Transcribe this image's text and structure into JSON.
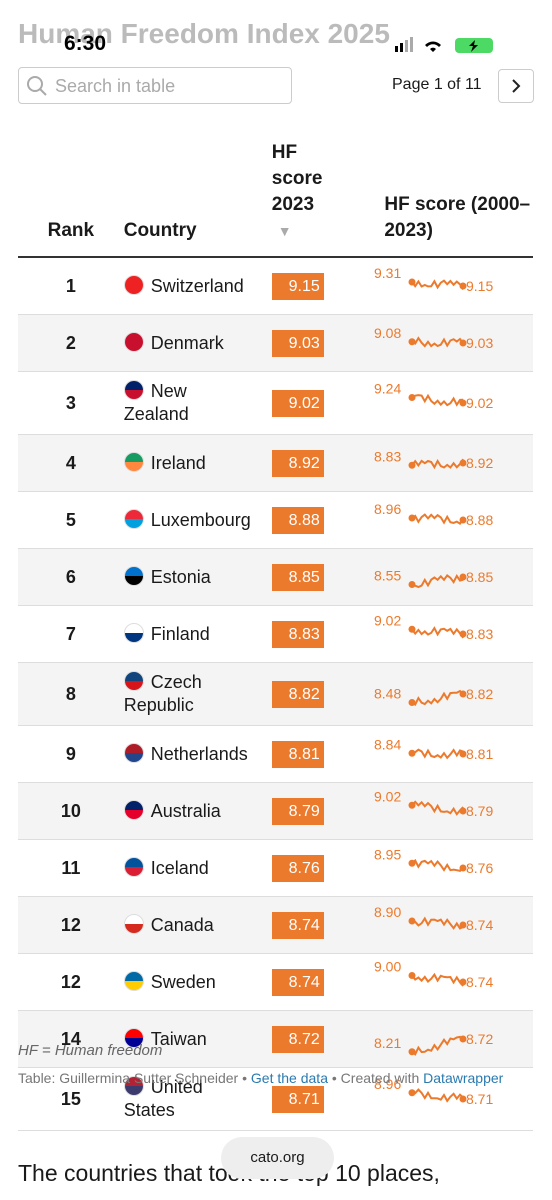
{
  "status": {
    "time": "6:30"
  },
  "header": {
    "title": "Human Freedom Index 2025"
  },
  "search": {
    "placeholder": "Search in table"
  },
  "pager": {
    "label": "Page 1 of 11"
  },
  "table": {
    "columns": [
      "Rank",
      "Country",
      "HF score 2023",
      "HF score (2000–2023)"
    ],
    "rows": [
      {
        "rank": "1",
        "country": "Switzerland",
        "score": "9.15",
        "start": "9.31",
        "end": "9.15"
      },
      {
        "rank": "2",
        "country": "Denmark",
        "score": "9.03",
        "start": "9.08",
        "end": "9.03"
      },
      {
        "rank": "3",
        "country": "New Zealand",
        "score": "9.02",
        "start": "9.24",
        "end": "9.02"
      },
      {
        "rank": "4",
        "country": "Ireland",
        "score": "8.92",
        "start": "8.83",
        "end": "8.92"
      },
      {
        "rank": "5",
        "country": "Luxembourg",
        "score": "8.88",
        "start": "8.96",
        "end": "8.88"
      },
      {
        "rank": "6",
        "country": "Estonia",
        "score": "8.85",
        "start": "8.55",
        "end": "8.85"
      },
      {
        "rank": "7",
        "country": "Finland",
        "score": "8.83",
        "start": "9.02",
        "end": "8.83"
      },
      {
        "rank": "8",
        "country": "Czech Republic",
        "score": "8.82",
        "start": "8.48",
        "end": "8.82"
      },
      {
        "rank": "9",
        "country": "Netherlands",
        "score": "8.81",
        "start": "8.84",
        "end": "8.81"
      },
      {
        "rank": "10",
        "country": "Australia",
        "score": "8.79",
        "start": "9.02",
        "end": "8.79"
      },
      {
        "rank": "11",
        "country": "Iceland",
        "score": "8.76",
        "start": "8.95",
        "end": "8.76"
      },
      {
        "rank": "12",
        "country": "Canada",
        "score": "8.74",
        "start": "8.90",
        "end": "8.74"
      },
      {
        "rank": "12",
        "country": "Sweden",
        "score": "8.74",
        "start": "9.00",
        "end": "8.74"
      },
      {
        "rank": "14",
        "country": "Taiwan",
        "score": "8.72",
        "start": "8.21",
        "end": "8.72"
      },
      {
        "rank": "15",
        "country": "United States",
        "score": "8.71",
        "start": "8.96",
        "end": "8.71"
      }
    ]
  },
  "footer": {
    "note": "HF = Human freedom",
    "credit": "Table: Guillermina Sutter Schneider",
    "get_data": "Get the data",
    "created": "Created with",
    "datawrapper": "Datawrapper"
  },
  "browser": {
    "url": "cato.org"
  },
  "body": {
    "text": "The countries that took the top 10 places,"
  }
}
